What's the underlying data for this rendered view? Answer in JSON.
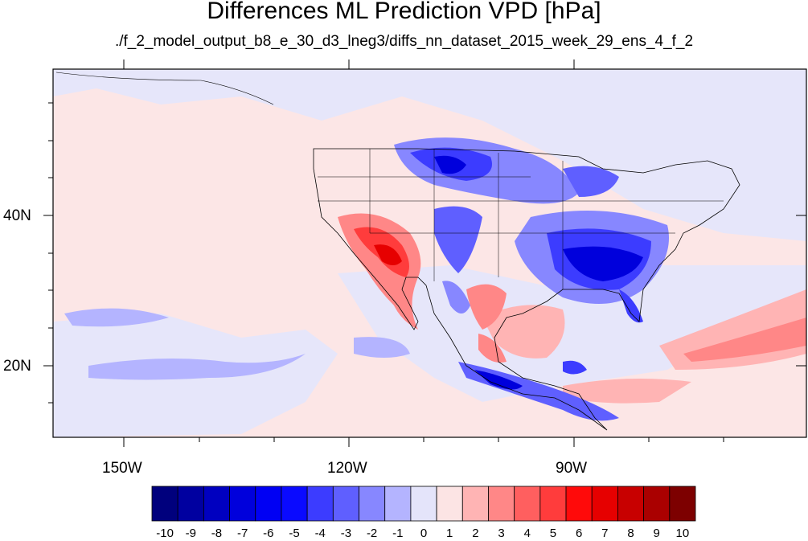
{
  "title": "Differences ML Prediction VPD [hPa]",
  "subtitle": "./f_2_model_output_b8_e_30_d3_lneg3/diffs_nn_dataset_2015_week_29_ens_4_f_2",
  "axes": {
    "lon_labels": [
      "150W",
      "120W",
      "90W"
    ],
    "lat_labels": [
      "40N",
      "20N"
    ]
  },
  "colorbar": {
    "labels": [
      "-10",
      "-9",
      "-8",
      "-7",
      "-6",
      "-5",
      "-4",
      "-3",
      "-2",
      "-1",
      "0",
      "1",
      "2",
      "3",
      "4",
      "5",
      "6",
      "7",
      "8",
      "9",
      "10"
    ],
    "colors": [
      "#00007d",
      "#0000a0",
      "#0000c0",
      "#0000dc",
      "#0000f4",
      "#0a0aff",
      "#3c3cff",
      "#5f5fff",
      "#8787ff",
      "#b4b4ff",
      "#e4e4fa",
      "#fce4e4",
      "#ffb4b4",
      "#ff8787",
      "#ff5f5f",
      "#ff3c3c",
      "#ff0a0a",
      "#e60000",
      "#c80000",
      "#aa0000",
      "#7d0000"
    ]
  },
  "colors": {
    "ocean_background": "#fce6e6",
    "land_background": "#e6e6fa",
    "strong_negative": "#1e1ee6",
    "strong_positive": "#e63232"
  }
}
